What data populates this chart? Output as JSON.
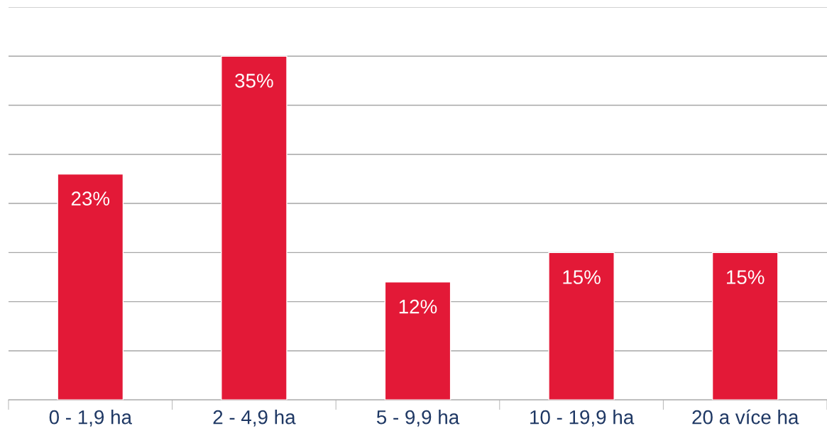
{
  "chart_data": {
    "type": "bar",
    "categories": [
      "0 - 1,9 ha",
      "2 - 4,9 ha",
      "5 - 9,9 ha",
      "10 - 19,9 ha",
      "20 a více ha"
    ],
    "values": [
      23,
      35,
      12,
      15,
      15
    ],
    "value_labels": [
      "23%",
      "35%",
      "12%",
      "15%",
      "15%"
    ],
    "color": "#e31937",
    "ylim": [
      0,
      40
    ],
    "yticks": [
      {
        "value": 0,
        "label": null
      },
      {
        "value": 5,
        "label": null
      },
      {
        "value": 10,
        "label": null
      },
      {
        "value": 15,
        "label": null
      },
      {
        "value": 20,
        "label": null
      },
      {
        "value": 25,
        "label": null
      },
      {
        "value": 30,
        "label": null
      },
      {
        "value": 35,
        "label": null
      },
      {
        "value": 40,
        "label": null
      }
    ],
    "grid": "y",
    "tick_labels": "x"
  }
}
